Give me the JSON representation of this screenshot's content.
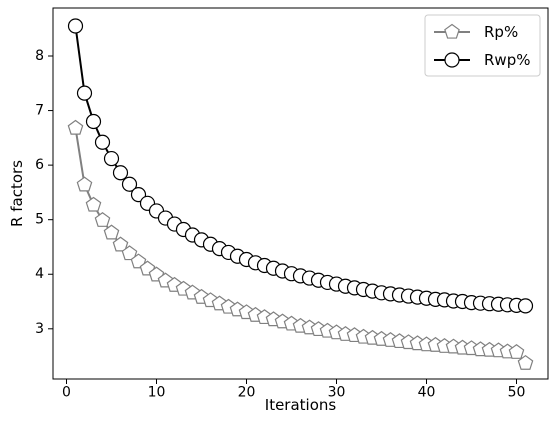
{
  "chart_data": {
    "type": "line",
    "xlabel": "Iterations",
    "ylabel": "R factors",
    "xlim": [
      -1.5,
      53.5
    ],
    "ylim": [
      2.08,
      8.88
    ],
    "xticks": [
      0,
      10,
      20,
      30,
      40,
      50
    ],
    "yticks": [
      3,
      4,
      5,
      6,
      7,
      8
    ],
    "grid": false,
    "legend_position": "top-right",
    "x": [
      1,
      2,
      3,
      4,
      5,
      6,
      7,
      8,
      9,
      10,
      11,
      12,
      13,
      14,
      15,
      16,
      17,
      18,
      19,
      20,
      21,
      22,
      23,
      24,
      25,
      26,
      27,
      28,
      29,
      30,
      31,
      32,
      33,
      34,
      35,
      36,
      37,
      38,
      39,
      40,
      41,
      42,
      43,
      44,
      45,
      46,
      47,
      48,
      49,
      50,
      51
    ],
    "series": [
      {
        "name": "Rp%",
        "marker": "pentagon",
        "line_color": "#808080",
        "marker_edge": "#808080",
        "marker_fill": "#ffffff",
        "values": [
          6.68,
          5.64,
          5.27,
          4.99,
          4.76,
          4.54,
          4.38,
          4.23,
          4.1,
          3.99,
          3.88,
          3.8,
          3.73,
          3.66,
          3.58,
          3.52,
          3.46,
          3.4,
          3.35,
          3.3,
          3.25,
          3.21,
          3.17,
          3.13,
          3.09,
          3.05,
          3.02,
          2.99,
          2.96,
          2.93,
          2.9,
          2.88,
          2.85,
          2.83,
          2.81,
          2.79,
          2.77,
          2.75,
          2.73,
          2.71,
          2.7,
          2.68,
          2.67,
          2.65,
          2.64,
          2.62,
          2.61,
          2.6,
          2.58,
          2.57,
          2.37
        ]
      },
      {
        "name": "Rwp%",
        "marker": "circle",
        "line_color": "#000000",
        "marker_edge": "#000000",
        "marker_fill": "#ffffff",
        "values": [
          8.55,
          7.32,
          6.8,
          6.42,
          6.12,
          5.86,
          5.65,
          5.46,
          5.3,
          5.16,
          5.03,
          4.92,
          4.82,
          4.72,
          4.63,
          4.55,
          4.47,
          4.4,
          4.33,
          4.27,
          4.21,
          4.16,
          4.11,
          4.06,
          4.01,
          3.97,
          3.93,
          3.89,
          3.85,
          3.82,
          3.78,
          3.75,
          3.72,
          3.69,
          3.66,
          3.64,
          3.62,
          3.6,
          3.58,
          3.56,
          3.54,
          3.53,
          3.51,
          3.5,
          3.48,
          3.47,
          3.46,
          3.45,
          3.44,
          3.43,
          3.42
        ]
      }
    ]
  }
}
